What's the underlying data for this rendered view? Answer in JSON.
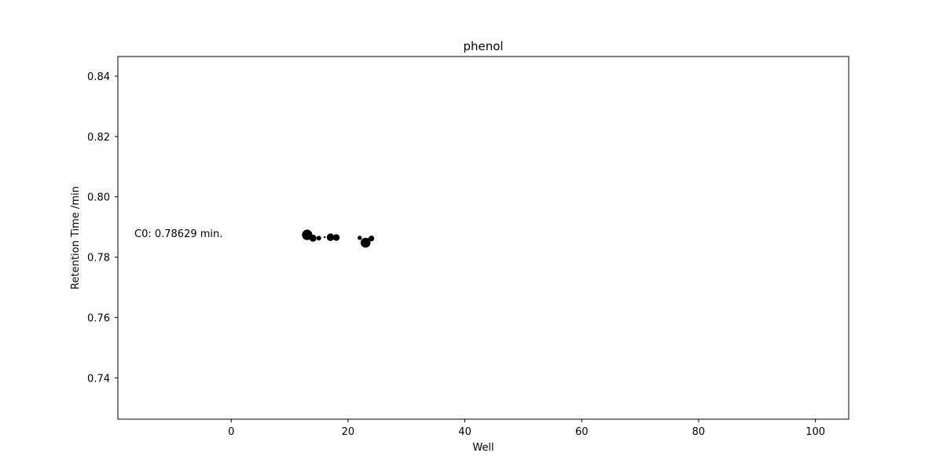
{
  "chart_data": {
    "type": "scatter",
    "title": "phenol",
    "xlabel": "Well",
    "ylabel": "Retention Time /min",
    "xlim": [
      -19.4,
      105.7
    ],
    "ylim": [
      0.7263,
      0.8465
    ],
    "xticks": [
      0,
      20,
      40,
      60,
      80,
      100
    ],
    "yticks": [
      0.74,
      0.76,
      0.78,
      0.8,
      0.82,
      0.84
    ],
    "grid": false,
    "annotation": "C0: 0.78629 min.",
    "marker_color": "#000000",
    "points": [
      {
        "x": 13,
        "y": 0.7874,
        "size": 2.2
      },
      {
        "x": 14,
        "y": 0.7863,
        "size": 1.5
      },
      {
        "x": 15,
        "y": 0.7863,
        "size": 1.0
      },
      {
        "x": 16,
        "y": 0.7866,
        "size": 0.4
      },
      {
        "x": 17,
        "y": 0.7866,
        "size": 1.6
      },
      {
        "x": 18,
        "y": 0.7865,
        "size": 1.4
      },
      {
        "x": 22,
        "y": 0.7864,
        "size": 0.9
      },
      {
        "x": 23,
        "y": 0.7848,
        "size": 2.1
      },
      {
        "x": 23.5,
        "y": 0.7858,
        "size": 0.6
      },
      {
        "x": 24,
        "y": 0.7862,
        "size": 1.2
      }
    ]
  }
}
